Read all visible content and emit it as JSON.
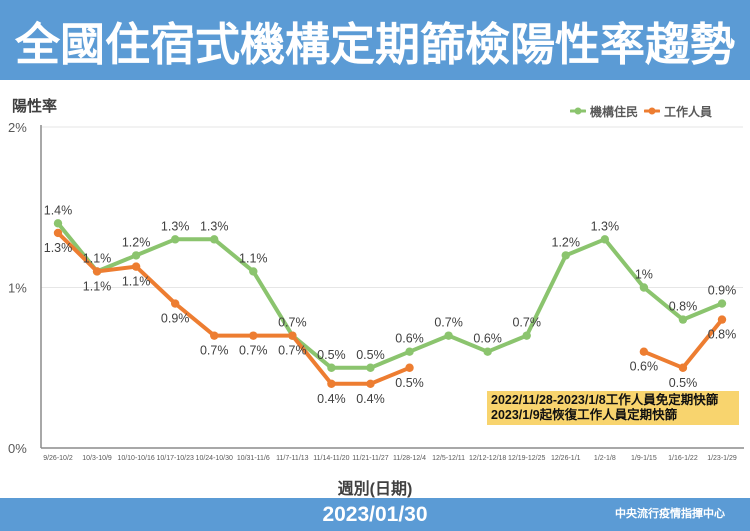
{
  "colors": {
    "banner": "#5b9bd5",
    "grid": "#e6e6e6",
    "axis": "#8c8c8c"
  },
  "chart_data": {
    "type": "line",
    "title": "全國住宿式機構定期篩檢陽性率趨勢",
    "ylabel": "陽性率",
    "xlabel": "週別(日期)",
    "ylim": [
      0,
      2
    ],
    "y_ticks": [
      0,
      1,
      2
    ],
    "y_tick_labels": [
      "0%",
      "1%",
      "2%"
    ],
    "grid": true,
    "legend_position": "top-right",
    "categories": [
      "9/26-10/2",
      "10/3-10/9",
      "10/10-10/16",
      "10/17-10/23",
      "10/24-10/30",
      "10/31-11/6",
      "11/7-11/13",
      "11/14-11/20",
      "11/21-11/27",
      "11/28-12/4",
      "12/5-12/11",
      "12/12-12/18",
      "12/19-12/25",
      "12/26-1/1",
      "1/2-1/8",
      "1/9-1/15",
      "1/16-1/22",
      "1/23-1/29"
    ],
    "series": [
      {
        "name": "機構住民",
        "color": "#8bc46e",
        "label_position": "above",
        "values": [
          1.4,
          1.1,
          1.2,
          1.3,
          1.3,
          1.1,
          0.7,
          0.5,
          0.5,
          0.6,
          0.7,
          0.6,
          0.7,
          1.2,
          1.3,
          1.0,
          0.8,
          0.9
        ],
        "labels": [
          "1.4%",
          "1.1%",
          "1.2%",
          "1.3%",
          "1.3%",
          "1.1%",
          "0.7%",
          "0.5%",
          "0.5%",
          "0.6%",
          "0.7%",
          "0.6%",
          "0.7%",
          "1.2%",
          "1.3%",
          "1%",
          "0.8%",
          "0.9%"
        ]
      },
      {
        "name": "工作人員",
        "color": "#ed7d31",
        "label_position": "below",
        "values": [
          1.34,
          1.1,
          1.13,
          0.9,
          0.7,
          0.7,
          0.7,
          0.4,
          0.4,
          0.5,
          null,
          null,
          null,
          null,
          null,
          0.6,
          0.5,
          0.8
        ],
        "labels": [
          "1.3%",
          "1.1%",
          "1.1%",
          "0.9%",
          "0.7%",
          "0.7%",
          "0.7%",
          "0.4%",
          "0.4%",
          "0.5%",
          null,
          null,
          null,
          null,
          null,
          "0.6%",
          "0.5%",
          "0.8%"
        ]
      }
    ],
    "annotation": {
      "lines": [
        "2022/11/28-2023/1/8工作人員免定期快篩",
        "2023/1/9起恢復工作人員定期快篩"
      ],
      "background": "#f8d46e"
    }
  },
  "footer": {
    "date": "2023/01/30",
    "source": "中央流行疫情指揮中心"
  }
}
